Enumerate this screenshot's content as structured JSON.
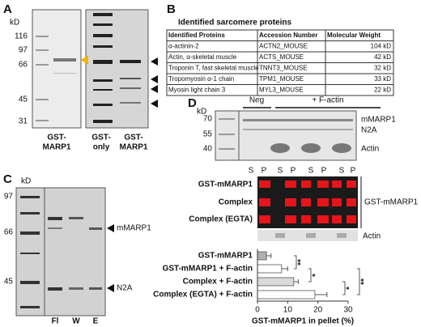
{
  "panels": {
    "a": {
      "label": "A",
      "unit": "kD",
      "ladder": [
        116,
        97,
        66,
        45,
        31
      ],
      "lanes": [
        [
          "GST-",
          "MARP1"
        ],
        [
          "GST-",
          "only"
        ],
        [
          "GST-",
          "MARP1"
        ]
      ]
    },
    "b": {
      "label": "B",
      "title": "Identified sarcomere proteins",
      "table": {
        "header": [
          "Identified Proteins",
          "Accession Number",
          "Molecular Weight"
        ],
        "rows": [
          [
            "α-actinin-2",
            "ACTN2_MOUSE",
            "104 kD"
          ],
          [
            "Actin, α-skeletal muscle",
            "ACTS_MOUSE",
            "42 kD"
          ],
          [
            "Troponin T, fast skeletal muscle",
            "TNNT3_MOUSE",
            "32 kD"
          ],
          [
            "Tropomyosin α-1 chain",
            "TPM1_MOUSE",
            "33 kD"
          ],
          [
            "Myosin light chain 3",
            "MYL3_MOUSE",
            "22 kD"
          ]
        ]
      }
    },
    "c": {
      "label": "C",
      "unit": "kD",
      "ladder": [
        97,
        66,
        45
      ],
      "markers": [
        "mMARP1",
        "N2A"
      ],
      "lanes": [
        "Fl",
        "W",
        "E"
      ]
    },
    "d": {
      "label": "D",
      "unit": "kD",
      "groups": [
        "Neg",
        "+ F-actin"
      ],
      "ladder": [
        70,
        55,
        40
      ],
      "markers": [
        "mMARP1",
        "N2A",
        "Actin"
      ],
      "fractions": [
        "S",
        "P",
        "S",
        "P",
        "S",
        "P",
        "S",
        "P"
      ],
      "blot_rows": [
        "GST-mMARP1",
        "Complex",
        "Complex (EGTA)"
      ],
      "blot_label": "GST-mMARP1",
      "actin_label": "Actin",
      "chart": {
        "type": "bar",
        "orientation": "horizontal",
        "categories": [
          "GST-mMARP1",
          "GST-mMARP1 + F-actin",
          "Complex  + F-actin",
          "Complex (EGTA) + F-actin"
        ],
        "values": [
          3,
          8,
          12,
          19
        ],
        "errors": [
          1.5,
          2,
          1.5,
          4
        ],
        "colors": [
          "#b0b0b0",
          "#ffffff",
          "#d9d9d9",
          "#ffffff"
        ],
        "xlim": [
          0,
          30
        ],
        "xticks": [
          0,
          10,
          20,
          30
        ],
        "xlabel": "GST-mMARP1 in pellet (%)",
        "significance": [
          "**",
          "*",
          "*",
          "**"
        ]
      }
    }
  }
}
